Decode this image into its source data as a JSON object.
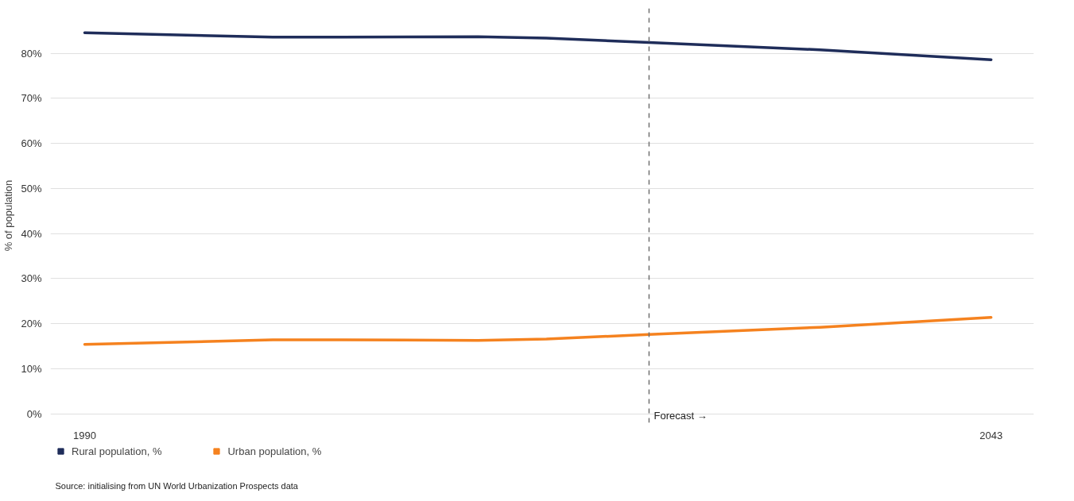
{
  "chart_data": {
    "type": "line",
    "ylabel": "% of population",
    "x": [
      1990,
      2001,
      2005,
      2013,
      2017,
      2023,
      2033,
      2043
    ],
    "series": [
      {
        "name": "Rural population, %",
        "color": "#1f2d5a",
        "values": [
          84.6,
          83.6,
          83.6,
          83.7,
          83.4,
          82.4,
          80.8,
          78.6
        ]
      },
      {
        "name": "Urban population, %",
        "color": "#f5821f",
        "values": [
          15.4,
          16.4,
          16.4,
          16.3,
          16.6,
          17.6,
          19.2,
          21.4
        ]
      }
    ],
    "xlim": [
      1988,
      2045.5
    ],
    "xticks": [
      1990,
      2043
    ],
    "ylim": [
      -2,
      90
    ],
    "yticks": [
      {
        "value": 0,
        "label": "0%"
      },
      {
        "value": 10,
        "label": "10%"
      },
      {
        "value": 20,
        "label": "20%"
      },
      {
        "value": 30,
        "label": "30%"
      },
      {
        "value": 40,
        "label": "40%"
      },
      {
        "value": 50,
        "label": "50%"
      },
      {
        "value": 60,
        "label": "60%"
      },
      {
        "value": 70,
        "label": "70%"
      },
      {
        "value": 80,
        "label": "80%"
      }
    ],
    "ref_lines": [
      {
        "axis": "x",
        "value": 2023,
        "label": "Forecast →",
        "color": "#707070",
        "line_style": "dashed"
      }
    ],
    "grid": "y",
    "legend": "bottom left",
    "line_style": "solid",
    "marker": "none",
    "annotations": [
      "Source: initialising from UN World Urbanization Prospects data"
    ]
  }
}
